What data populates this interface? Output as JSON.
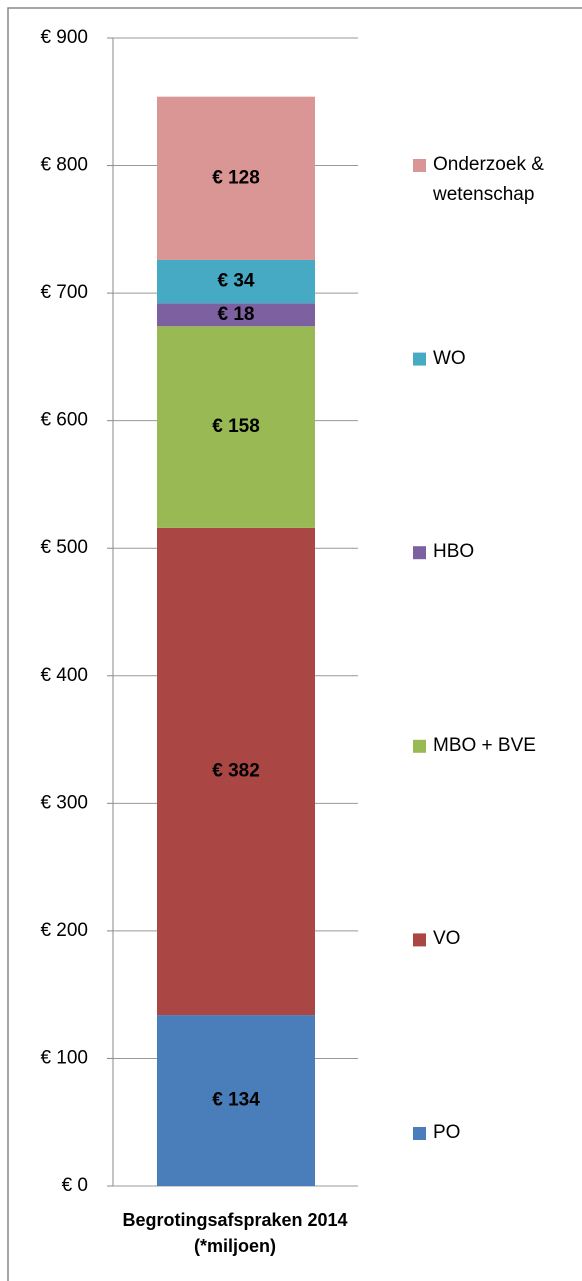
{
  "chart_data": {
    "type": "stacked_bar",
    "categories": [
      "Begrotingsafspraken 2014 (*miljoen)"
    ],
    "series": [
      {
        "name": "PO",
        "color": "#4a7ebb",
        "values": [
          134
        ],
        "value_labels": [
          "€ 134"
        ]
      },
      {
        "name": "VO",
        "color": "#aa4643",
        "values": [
          382
        ],
        "value_labels": [
          "€ 382"
        ]
      },
      {
        "name": "MBO + BVE",
        "color": "#98b954",
        "values": [
          158
        ],
        "value_labels": [
          "€ 158"
        ]
      },
      {
        "name": "HBO",
        "color": "#7d60a0",
        "values": [
          18
        ],
        "value_labels": [
          "€ 18"
        ]
      },
      {
        "name": "WO",
        "color": "#46aac5",
        "values": [
          34
        ],
        "value_labels": [
          "€ 34"
        ]
      },
      {
        "name": "Onderzoek & wetenschap",
        "color": "#d99694",
        "values": [
          128
        ],
        "value_labels": [
          "€ 128"
        ]
      }
    ],
    "ylim": [
      0,
      900
    ],
    "yticks": [
      {
        "value": 0,
        "label": "€ 0"
      },
      {
        "value": 100,
        "label": "€ 100"
      },
      {
        "value": 200,
        "label": "€ 200"
      },
      {
        "value": 300,
        "label": "€ 300"
      },
      {
        "value": 400,
        "label": "€ 400"
      },
      {
        "value": 500,
        "label": "€ 500"
      },
      {
        "value": 600,
        "label": "€ 600"
      },
      {
        "value": 700,
        "label": "€ 700"
      },
      {
        "value": 800,
        "label": "€ 800"
      },
      {
        "value": 900,
        "label": "€ 900"
      }
    ],
    "grid": true,
    "legend": "right"
  }
}
